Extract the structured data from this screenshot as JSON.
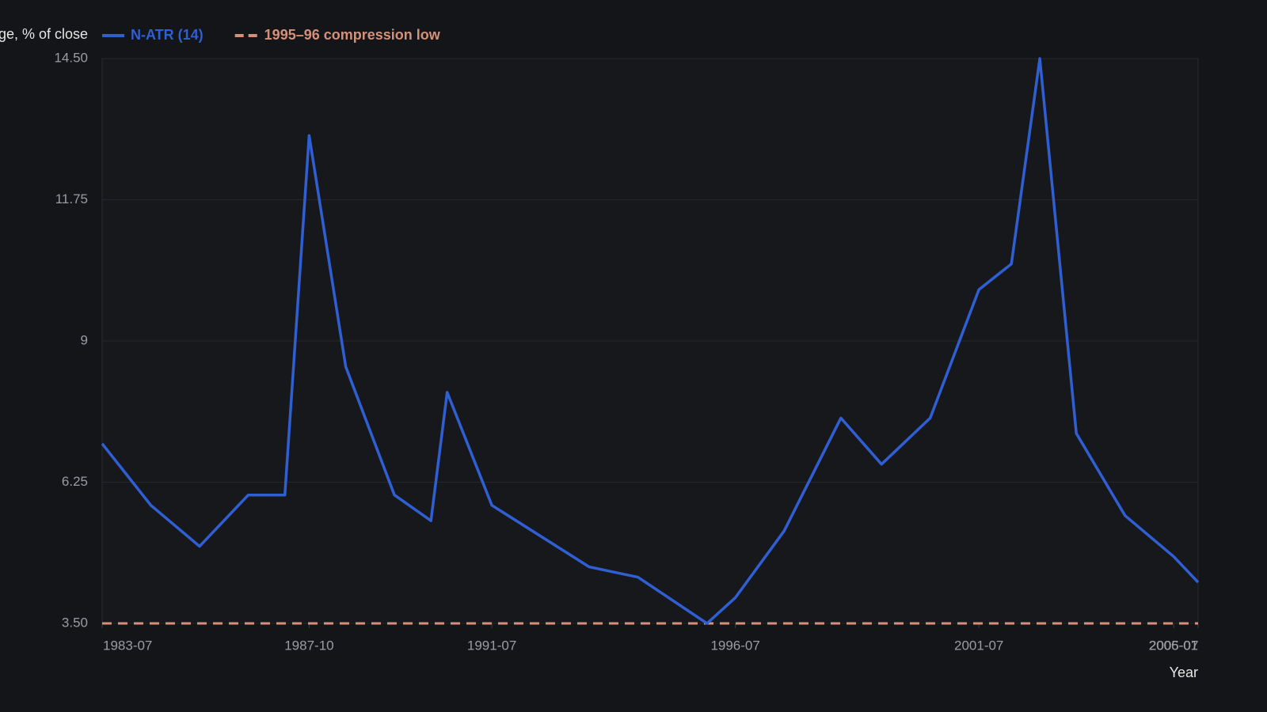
{
  "chart_data": {
    "type": "line",
    "y_label": "ge, % of close",
    "x_label": "Year",
    "x": [
      "1983-07",
      "1984-07",
      "1985-07",
      "1986-07",
      "1987-04",
      "1987-10",
      "1988-07",
      "1989-07",
      "1990-04",
      "1990-08",
      "1991-07",
      "1993-07",
      "1994-07",
      "1995-12",
      "1996-07",
      "1997-07",
      "1998-09",
      "1999-07",
      "2000-07",
      "2001-07",
      "2002-03",
      "2002-10",
      "2003-07",
      "2004-07",
      "2005-07",
      "2006-01"
    ],
    "series": [
      {
        "name": "N-ATR (14)",
        "color": "#2f5fd3",
        "values": [
          7.0,
          5.8,
          5.0,
          6.0,
          6.0,
          13.0,
          8.5,
          6.0,
          5.5,
          8.0,
          5.8,
          4.6,
          4.4,
          3.5,
          4.0,
          5.3,
          7.5,
          6.6,
          7.5,
          10.0,
          10.5,
          14.5,
          7.2,
          5.6,
          4.8,
          4.3
        ]
      }
    ],
    "reference_lines": [
      {
        "name": "1995–96 compression low",
        "value": 3.5,
        "color": "#d4917a",
        "dash": true
      }
    ],
    "xlim": [
      "1983-07",
      "2006-01"
    ],
    "xticks": [
      "1983-07",
      "1987-10",
      "1991-07",
      "1996-07",
      "2001-07",
      "2005-07",
      "2006-01"
    ],
    "ylim": [
      3.5,
      14.5
    ],
    "yticks": [
      {
        "value": 3.5,
        "label": "3.50"
      },
      6.25,
      9,
      11.75,
      {
        "value": 14.5,
        "label": "14.50"
      }
    ],
    "grid": true
  }
}
